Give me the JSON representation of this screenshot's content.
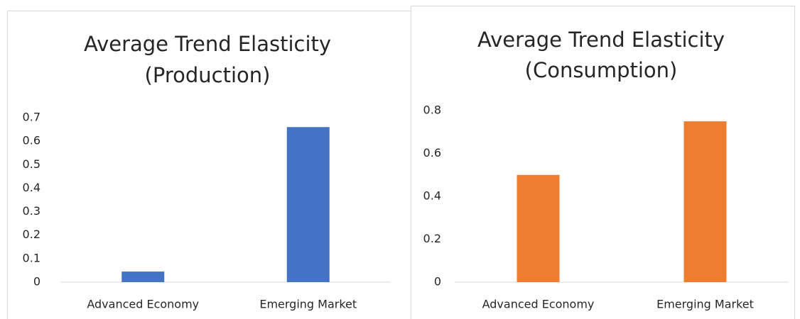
{
  "chart_data": [
    {
      "type": "bar",
      "title": [
        "Average Trend Elasticity",
        "(Production)"
      ],
      "categories": [
        "Advanced Economy",
        "Emerging Market"
      ],
      "values": [
        0.045,
        0.66
      ],
      "color": "#4472c4",
      "ylim": [
        0,
        0.7
      ],
      "yticks": [
        0,
        0.1,
        0.2,
        0.3,
        0.4,
        0.5,
        0.6,
        0.7
      ],
      "grid": false
    },
    {
      "type": "bar",
      "title": [
        "Average Trend Elasticity",
        "(Consumption)"
      ],
      "categories": [
        "Advanced Economy",
        "Emerging Market"
      ],
      "values": [
        0.5,
        0.75
      ],
      "color": "#ed7d31",
      "ylim": [
        0,
        0.8
      ],
      "yticks": [
        0,
        0.2,
        0.4,
        0.6,
        0.8
      ],
      "grid": false
    }
  ]
}
